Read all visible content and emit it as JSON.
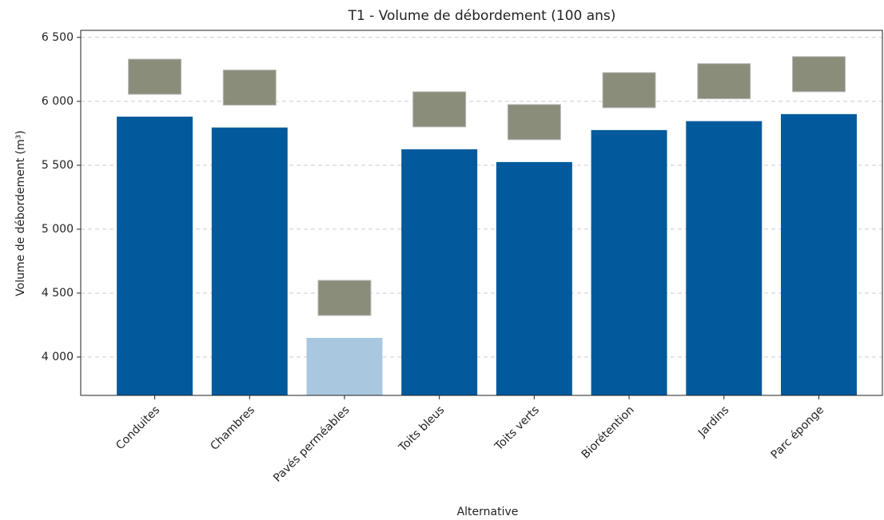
{
  "chart_data": {
    "type": "bar",
    "title": "T1 - Volume de débordement (100 ans)",
    "x_label": "Alternative",
    "y_label": "Volume de débordement (m³)",
    "categories": [
      "Conduites",
      "Chambres",
      "Pavés perméables",
      "Toits bleus",
      "Toits verts",
      "Biorétention",
      "Jardins",
      "Parc éponge"
    ],
    "values": [
      5880,
      5795,
      4150,
      5625,
      5525,
      5775,
      5845,
      5900
    ],
    "colors": [
      "#005a9c",
      "#005a9c",
      "#a9c8e0",
      "#005a9c",
      "#005a9c",
      "#005a9c",
      "#005a9c",
      "#005a9c"
    ],
    "ylim": [
      3700,
      6555
    ],
    "yticks": [
      {
        "value": 4000,
        "label": "4 000"
      },
      {
        "value": 4500,
        "label": "4 500"
      },
      {
        "value": 5000,
        "label": "5 000"
      },
      {
        "value": 5500,
        "label": "5 500"
      },
      {
        "value": 6000,
        "label": "6 000"
      },
      {
        "value": 6500,
        "label": "6 500"
      }
    ],
    "grid": true
  }
}
